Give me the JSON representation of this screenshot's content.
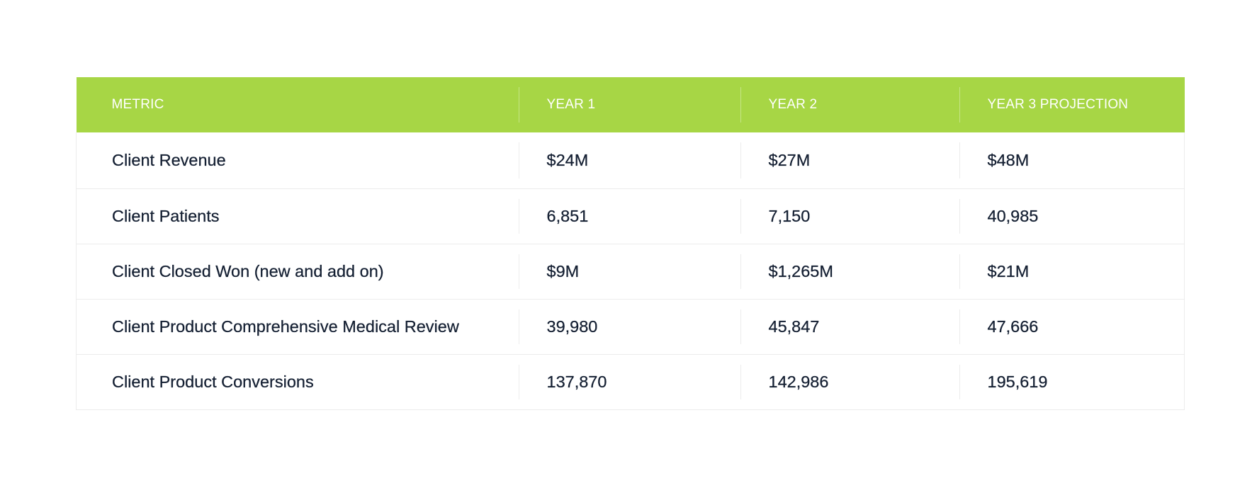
{
  "table": {
    "headers": [
      "METRIC",
      "YEAR 1",
      "YEAR 2",
      "YEAR 3 PROJECTION"
    ],
    "rows": [
      [
        "Client Revenue",
        "$24M",
        "$27M",
        "$48M"
      ],
      [
        "Client Patients",
        "6,851",
        "7,150",
        "40,985"
      ],
      [
        "Client Closed Won (new and add on)",
        "$9M",
        "$1,265M",
        "$21M"
      ],
      [
        "Client Product Comprehensive Medical Review",
        "39,980",
        "45,847",
        "47,666"
      ],
      [
        "Client Product Conversions",
        "137,870",
        "142,986",
        "195,619"
      ]
    ]
  },
  "colors": {
    "header_background": "#a7d645",
    "header_text": "#ffffff",
    "body_text": "#152033",
    "row_divider": "#ececec"
  }
}
